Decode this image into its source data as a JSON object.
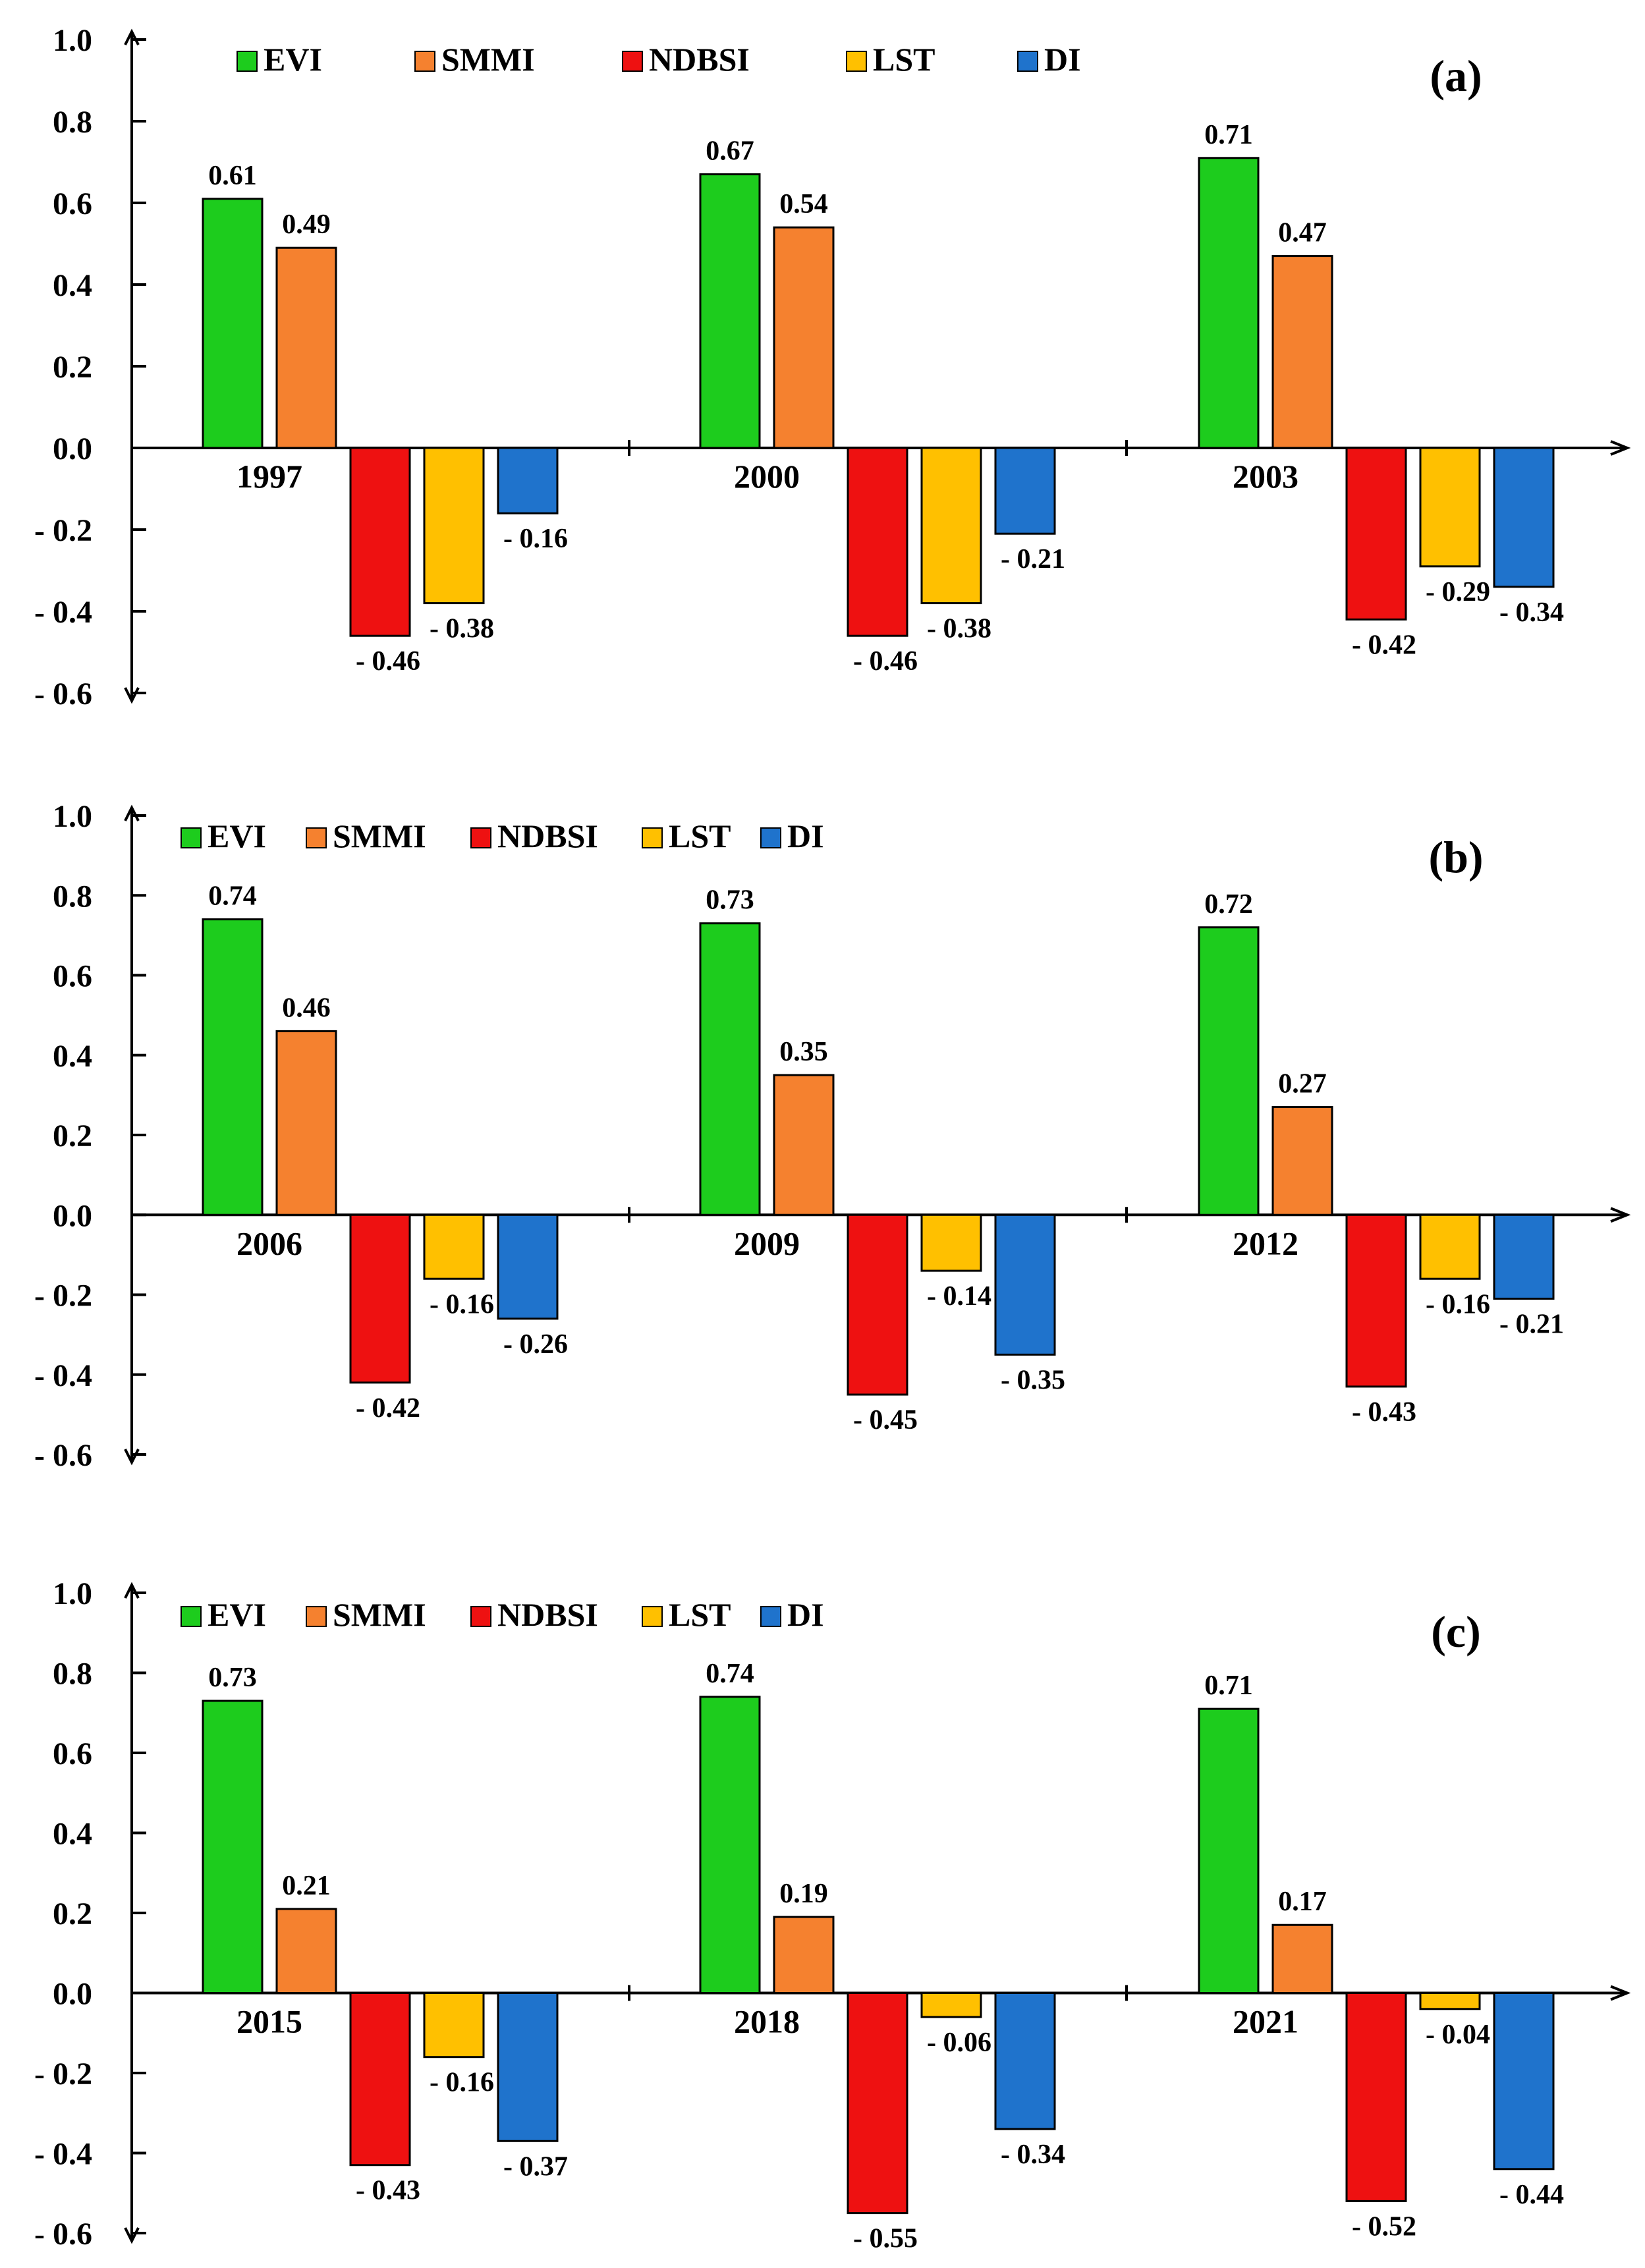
{
  "chart_data": [
    {
      "type": "bar",
      "panel_label": "(a)",
      "categories": [
        "1997",
        "2000",
        "2003"
      ],
      "series": [
        {
          "name": "EVI",
          "color": "#1DCC1D",
          "values": [
            0.61,
            0.67,
            0.71
          ]
        },
        {
          "name": "SMMI",
          "color": "#F5812F",
          "values": [
            0.49,
            0.54,
            0.47
          ]
        },
        {
          "name": "NDBSI",
          "color": "#EE1111",
          "values": [
            -0.46,
            -0.46,
            -0.42
          ]
        },
        {
          "name": "LST",
          "color": "#FFC000",
          "values": [
            -0.38,
            -0.38,
            -0.29
          ]
        },
        {
          "name": "DI",
          "color": "#1F73CC",
          "values": [
            -0.16,
            -0.21,
            -0.34
          ]
        }
      ],
      "value_labels": [
        [
          "0.61",
          "0.67",
          "0.71"
        ],
        [
          "0.49",
          "0.54",
          "0.47"
        ],
        [
          "- 0.46",
          "- 0.46",
          "- 0.42"
        ],
        [
          "- 0.38",
          "- 0.38",
          "- 0.29"
        ],
        [
          "- 0.16",
          "- 0.21",
          "- 0.34"
        ]
      ],
      "ylim": [
        -0.6,
        1.0
      ],
      "yticks": [
        "1.0",
        "0.8",
        "0.6",
        "0.4",
        "0.2",
        "0.0",
        "- 0.2",
        "- 0.4",
        "- 0.6"
      ],
      "legend_position": "top",
      "grid": false
    },
    {
      "type": "bar",
      "panel_label": "(b)",
      "categories": [
        "2006",
        "2009",
        "2012"
      ],
      "series": [
        {
          "name": "EVI",
          "color": "#1DCC1D",
          "values": [
            0.74,
            0.73,
            0.72
          ]
        },
        {
          "name": "SMMI",
          "color": "#F5812F",
          "values": [
            0.46,
            0.35,
            0.27
          ]
        },
        {
          "name": "NDBSI",
          "color": "#EE1111",
          "values": [
            -0.42,
            -0.45,
            -0.43
          ]
        },
        {
          "name": "LST",
          "color": "#FFC000",
          "values": [
            -0.16,
            -0.14,
            -0.16
          ]
        },
        {
          "name": "DI",
          "color": "#1F73CC",
          "values": [
            -0.26,
            -0.35,
            -0.21
          ]
        }
      ],
      "value_labels": [
        [
          "0.74",
          "0.73",
          "0.72"
        ],
        [
          "0.46",
          "0.35",
          "0.27"
        ],
        [
          "- 0.42",
          "- 0.45",
          "- 0.43"
        ],
        [
          "- 0.16",
          "- 0.14",
          "- 0.16"
        ],
        [
          "- 0.26",
          "- 0.35",
          "- 0.21"
        ]
      ],
      "ylim": [
        -0.6,
        1.0
      ],
      "yticks": [
        "1.0",
        "0.8",
        "0.6",
        "0.4",
        "0.2",
        "0.0",
        "- 0.2",
        "- 0.4",
        "- 0.6"
      ],
      "legend_position": "top",
      "grid": false
    },
    {
      "type": "bar",
      "panel_label": "(c)",
      "categories": [
        "2015",
        "2018",
        "2021"
      ],
      "series": [
        {
          "name": "EVI",
          "color": "#1DCC1D",
          "values": [
            0.73,
            0.74,
            0.71
          ]
        },
        {
          "name": "SMMI",
          "color": "#F5812F",
          "values": [
            0.21,
            0.19,
            0.17
          ]
        },
        {
          "name": "NDBSI",
          "color": "#EE1111",
          "values": [
            -0.43,
            -0.55,
            -0.52
          ]
        },
        {
          "name": "LST",
          "color": "#FFC000",
          "values": [
            -0.16,
            -0.06,
            -0.04
          ]
        },
        {
          "name": "DI",
          "color": "#1F73CC",
          "values": [
            -0.37,
            -0.34,
            -0.44
          ]
        }
      ],
      "value_labels": [
        [
          "0.73",
          "0.74",
          "0.71"
        ],
        [
          "0.21",
          "0.19",
          "0.17"
        ],
        [
          "- 0.43",
          "- 0.55",
          "- 0.52"
        ],
        [
          "- 0.16",
          "- 0.06",
          "- 0.04"
        ],
        [
          "- 0.37",
          "- 0.34",
          "- 0.44"
        ]
      ],
      "ylim": [
        -0.6,
        1.0
      ],
      "yticks": [
        "1.0",
        "0.8",
        "0.6",
        "0.4",
        "0.2",
        "0.0",
        "- 0.2",
        "- 0.4",
        "- 0.6"
      ],
      "legend_position": "top",
      "grid": false
    }
  ]
}
